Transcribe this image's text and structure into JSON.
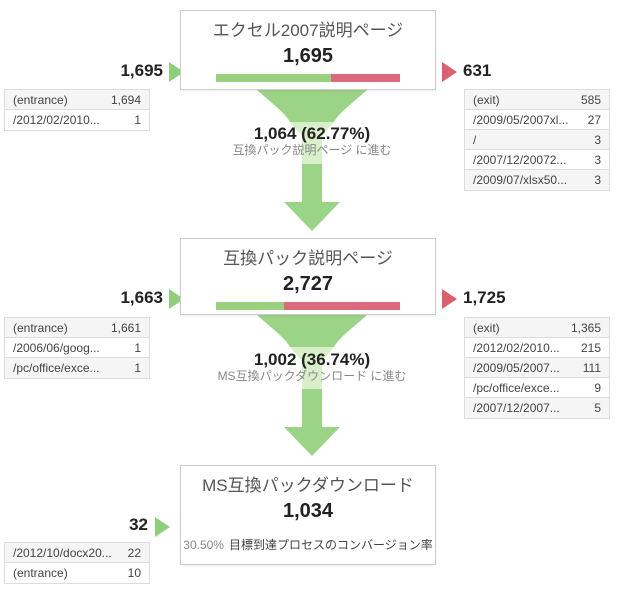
{
  "palette": {
    "green": "#9CD487",
    "green-light": "#D8EFCA",
    "bar-green": "#97D07F",
    "bar-red": "#DB6B7C",
    "in-arrow": "#8FCF7B",
    "out-arrow": "#D8616F",
    "text-dark": "#222222",
    "text-title": "#555555",
    "text-muted": "#888888",
    "table-border": "#DDDDDD",
    "table-alt": "#F5F5F5",
    "box-border": "#CCCCCC"
  },
  "stages": [
    {
      "title": "エクセル2007説明ページ",
      "value": "1,695",
      "proceed_pct": 62.77,
      "in": {
        "count": "1,695",
        "table": [
          [
            "(entrance)",
            "1,694"
          ],
          [
            "/2012/02/2010...",
            "1"
          ]
        ]
      },
      "out": {
        "count": "631",
        "table": [
          [
            "(exit)",
            "585"
          ],
          [
            "/2009/05/2007xl...",
            "27"
          ],
          [
            "/",
            "3"
          ],
          [
            "/2007/12/20072...",
            "3"
          ],
          [
            "/2009/07/xlsx50...",
            "3"
          ]
        ]
      },
      "transition": {
        "count": "1,064 (62.77%)",
        "label": "互換パック説明ページ に進む"
      }
    },
    {
      "title": "互換パック説明ページ",
      "value": "2,727",
      "proceed_pct": 36.74,
      "in": {
        "count": "1,663",
        "table": [
          [
            "(entrance)",
            "1,661"
          ],
          [
            "/2006/06/goog...",
            "1"
          ],
          [
            "/pc/office/exce...",
            "1"
          ]
        ]
      },
      "out": {
        "count": "1,725",
        "table": [
          [
            "(exit)",
            "1,365"
          ],
          [
            "/2012/02/2010...",
            "215"
          ],
          [
            "/2009/05/2007...",
            "111"
          ],
          [
            "/pc/office/exce...",
            "9"
          ],
          [
            "/2007/12/2007...",
            "5"
          ]
        ]
      },
      "transition": {
        "count": "1,002 (36.74%)",
        "label": "MS互換パックダウンロード に進む"
      }
    },
    {
      "title": "MS互換パックダウンロード",
      "value": "1,034",
      "conversion": {
        "pct": "30.50%",
        "label": "目標到達プロセスのコンバージョン率"
      },
      "in": {
        "count": "32",
        "table": [
          [
            "/2012/10/docx20...",
            "22"
          ],
          [
            "(entrance)",
            "10"
          ]
        ]
      }
    }
  ],
  "chart_data": {
    "type": "funnel",
    "stages": [
      {
        "name": "エクセル2007説明ページ",
        "visits": 1695,
        "inflow": 1695,
        "outflow": 631,
        "proceeded": 1064,
        "proceed_rate_pct": 62.77,
        "entrance_sources": [
          [
            "(entrance)",
            1694
          ],
          [
            "/2012/02/2010...",
            1
          ]
        ],
        "exit_destinations": [
          [
            "(exit)",
            585
          ],
          [
            "/2009/05/2007xl...",
            27
          ],
          [
            "/",
            3
          ],
          [
            "/2007/12/20072...",
            3
          ],
          [
            "/2009/07/xlsx50...",
            3
          ]
        ]
      },
      {
        "name": "互換パック説明ページ",
        "visits": 2727,
        "inflow": 1663,
        "outflow": 1725,
        "proceeded": 1002,
        "proceed_rate_pct": 36.74,
        "entrance_sources": [
          [
            "(entrance)",
            1661
          ],
          [
            "/2006/06/goog...",
            1
          ],
          [
            "/pc/office/exce...",
            1
          ]
        ],
        "exit_destinations": [
          [
            "(exit)",
            1365
          ],
          [
            "/2012/02/2010...",
            215
          ],
          [
            "/2009/05/2007...",
            111
          ],
          [
            "/pc/office/exce...",
            9
          ],
          [
            "/2007/12/2007...",
            5
          ]
        ]
      },
      {
        "name": "MS互換パックダウンロード",
        "visits": 1034,
        "inflow": 32,
        "funnel_conversion_rate_pct": 30.5,
        "entrance_sources": [
          [
            "/2012/10/docx20...",
            22
          ],
          [
            "(entrance)",
            10
          ]
        ]
      }
    ],
    "legend_position": "none",
    "grid": false
  }
}
